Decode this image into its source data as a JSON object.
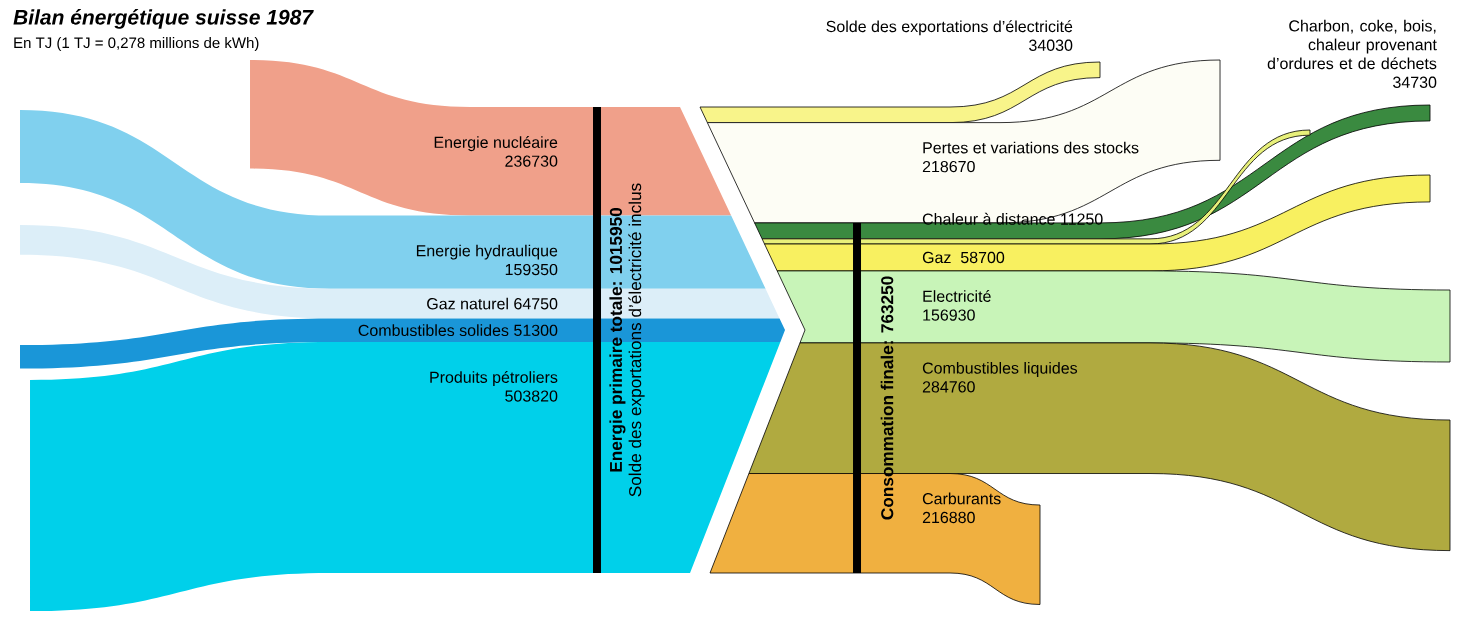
{
  "chart_data": {
    "type": "other",
    "title": "Bilan énergétique suisse 1987",
    "subtitle": "En TJ (1 TJ = 0,278 millions de kWh)",
    "annotations": [
      "Solde des exportations d’électricité inclus"
    ],
    "categories": [
      "Energie nucléaire",
      "Energie hydraulique",
      "Gaz naturel",
      "Combustibles solides",
      "Produits pétroliers",
      "Solde des exportations d’électricité",
      "Pertes et variations des stocks",
      "Charbon, coke, bois, chaleur provenant d’ordures et de déchets",
      "Chaleur à distance",
      "Gaz",
      "Electricité",
      "Combustibles liquides",
      "Carburants"
    ],
    "data_labels": true,
    "series": [
      {
        "name": "Energie primaire totale: 1015950",
        "values": [
          236730,
          159350,
          64750,
          51300,
          503820,
          null,
          null,
          null,
          null,
          null,
          null,
          null,
          null
        ],
        "colors": [
          "#f0a08a",
          "#80d0ee",
          "#dceef8",
          "#1a96d8",
          "#00d0ea",
          null,
          null,
          null,
          null,
          null,
          null,
          null,
          null
        ]
      },
      {
        "values": [
          null,
          null,
          null,
          null,
          null,
          34030,
          218670,
          null,
          null,
          null,
          null,
          null,
          null
        ],
        "colors": [
          null,
          null,
          null,
          null,
          null,
          "#f8f48a",
          "#fdfdf5",
          null,
          null,
          null,
          null,
          null,
          null
        ]
      },
      {
        "name": "Consommation finale: 763250",
        "values": [
          null,
          null,
          null,
          null,
          null,
          null,
          null,
          34730,
          11250,
          58700,
          156930,
          284760,
          216880
        ],
        "colors": [
          null,
          null,
          null,
          null,
          null,
          null,
          null,
          "#3a8a40",
          "#e8f07a",
          "#f8f060",
          "#c8f4b8",
          "#b0aa40",
          "#f0b040"
        ]
      }
    ]
  }
}
